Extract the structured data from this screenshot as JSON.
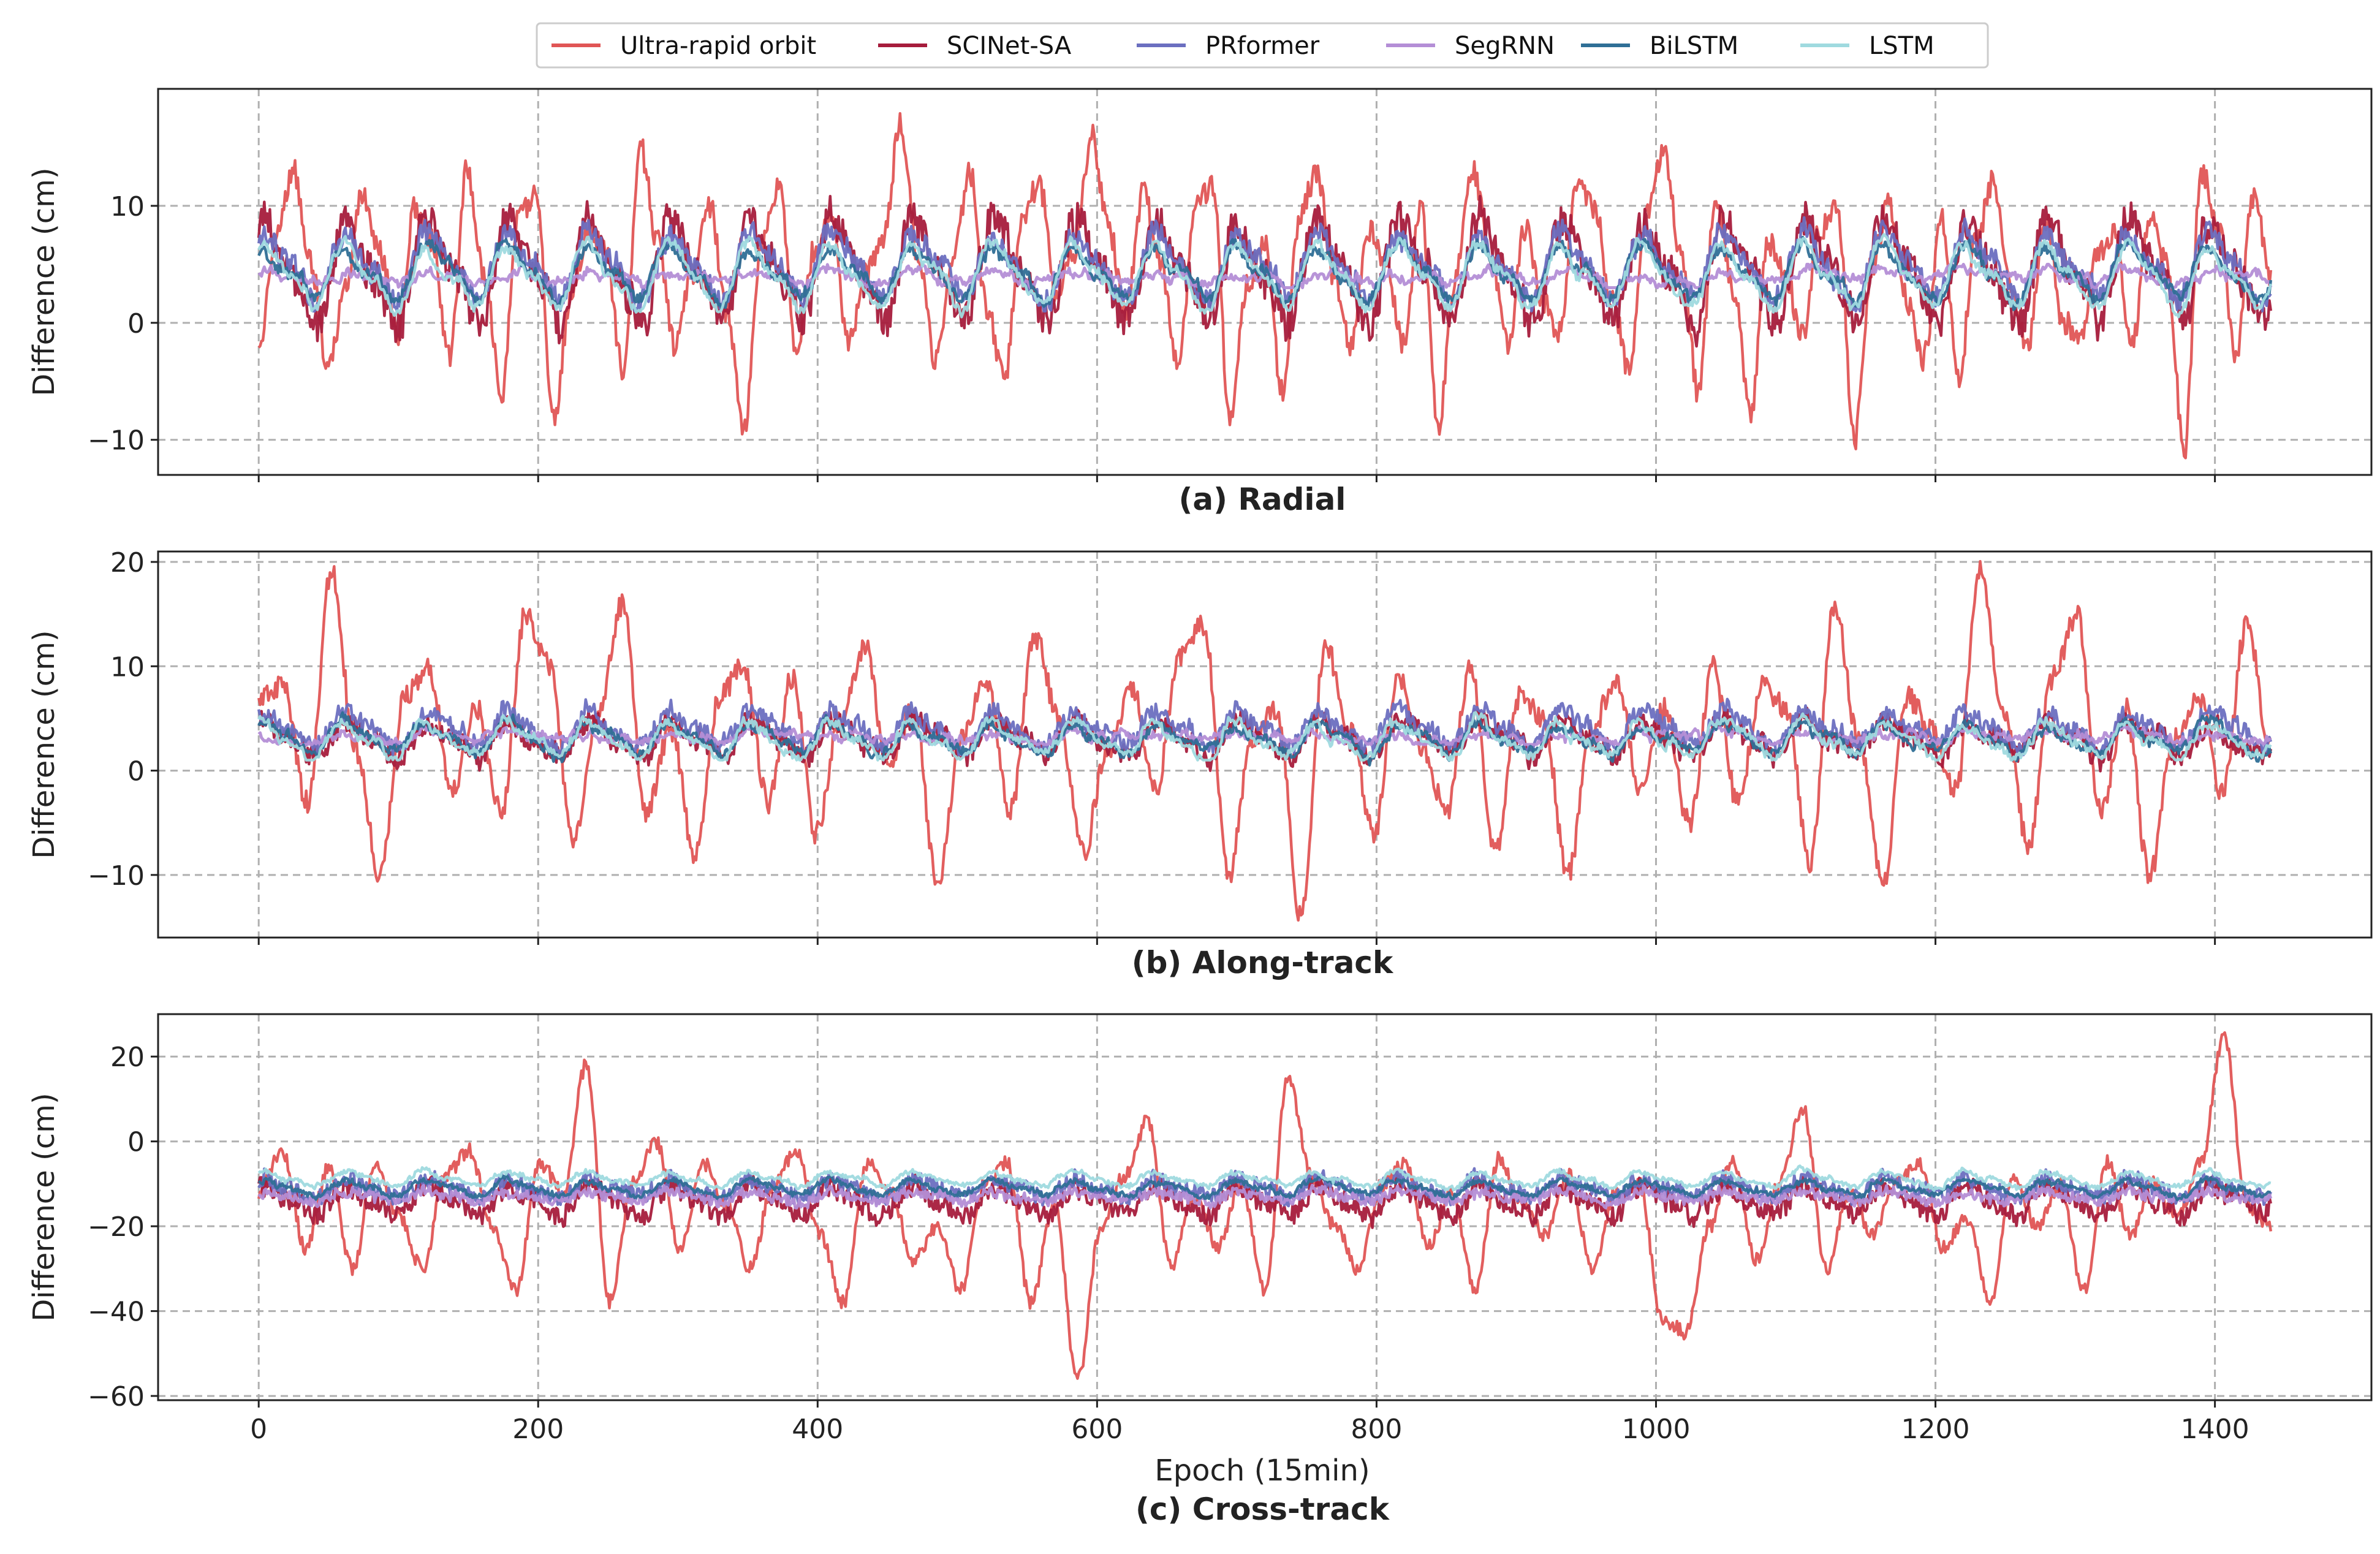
{
  "legend": [
    {
      "name": "Ultra-rapid orbit",
      "color": "#e05555"
    },
    {
      "name": "SCINet-SA",
      "color": "#a61c3c"
    },
    {
      "name": "PRformer",
      "color": "#6b6fc0"
    },
    {
      "name": "SegRNN",
      "color": "#b48ed6"
    },
    {
      "name": "BiLSTM",
      "color": "#2f6f96"
    },
    {
      "name": "LSTM",
      "color": "#9fdadf"
    }
  ],
  "chart_data": [
    {
      "type": "line",
      "panel": "a",
      "caption": "(a) Radial",
      "ylabel": "Difference (cm)",
      "xlabel": "",
      "xlim": [
        -72,
        1512
      ],
      "ylim": [
        -13,
        20
      ],
      "xticks": [
        0,
        200,
        400,
        600,
        800,
        1000,
        1200,
        1400
      ],
      "xtick_labels": [],
      "yticks": [
        -10,
        0,
        10
      ],
      "ytick_labels": [
        "−10",
        "0",
        "10"
      ],
      "grid": true,
      "series": [
        {
          "name": "Ultra-rapid orbit",
          "x_start": 0,
          "x_end": 1440,
          "y": [
            -3,
            8,
            13,
            5,
            -4,
            3,
            11,
            6,
            -1,
            10,
            7,
            -3,
            13,
            4,
            -6,
            9,
            11,
            -8,
            2,
            8,
            6,
            -4,
            15,
            7,
            -2,
            4,
            10,
            1,
            -9,
            7,
            12,
            -3,
            6,
            9,
            -2,
            4,
            7,
            17,
            6,
            -3,
            5,
            13,
            1,
            -5,
            9,
            12,
            2,
            6,
            16,
            8,
            1,
            11,
            5,
            -4,
            10,
            12,
            -8,
            3,
            7,
            -6,
            9,
            13,
            4,
            -2,
            8,
            5,
            -2,
            10,
            -9,
            4,
            13,
            6,
            -2,
            8,
            2,
            -1,
            12,
            10,
            2,
            -4,
            9,
            15,
            6,
            -6,
            11,
            3,
            -8,
            7,
            4,
            -1,
            8,
            10,
            -10,
            5,
            10,
            2,
            -3,
            9,
            -5,
            7,
            12,
            3,
            -2,
            9,
            0,
            -1,
            6,
            8,
            -2,
            9,
            5,
            -11,
            13,
            8,
            -3,
            11,
            4
          ],
          "stats": {
            "mean": 3,
            "amp": 8,
            "period": 58,
            "noise": 4.5
          }
        },
        {
          "name": "SCINet-SA",
          "x_start": 0,
          "x_end": 1440,
          "stats": {
            "mean": 4.5,
            "amp": 3.8,
            "period": 58,
            "noise": 1.6,
            "lo": -2,
            "hi": 11
          }
        },
        {
          "name": "PRformer",
          "x_start": 0,
          "x_end": 1440,
          "stats": {
            "mean": 4.8,
            "amp": 2.4,
            "period": 58,
            "noise": 0.9,
            "lo": 1,
            "hi": 9
          }
        },
        {
          "name": "SegRNN",
          "x_start": 0,
          "x_end": 1440,
          "stats": {
            "mean": 3.9,
            "amp": 0.3,
            "period": 58,
            "noise": 0.25,
            "lo": 3,
            "hi": 5
          }
        },
        {
          "name": "BiLSTM",
          "x_start": 0,
          "x_end": 1440,
          "stats": {
            "mean": 4.2,
            "amp": 2.0,
            "period": 58,
            "noise": 0.4,
            "lo": 1,
            "hi": 8
          }
        },
        {
          "name": "LSTM",
          "x_start": 0,
          "x_end": 1440,
          "stats": {
            "mean": 4.0,
            "amp": 2.3,
            "period": 58,
            "noise": 0.3,
            "lo": 0.5,
            "hi": 8
          }
        }
      ]
    },
    {
      "type": "line",
      "panel": "b",
      "caption": "(b) Along-track",
      "ylabel": "Difference (cm)",
      "xlabel": "",
      "xlim": [
        -72,
        1512
      ],
      "ylim": [
        -16,
        21
      ],
      "xticks": [
        0,
        200,
        400,
        600,
        800,
        1000,
        1200,
        1400
      ],
      "xtick_labels": [],
      "yticks": [
        -10,
        0,
        10,
        20
      ],
      "ytick_labels": [
        "−10",
        "0",
        "10",
        "20"
      ],
      "grid": true,
      "series": [
        {
          "name": "Ultra-rapid orbit",
          "x_start": 0,
          "x_end": 1440,
          "y": [
            7,
            8,
            -3,
            19,
            2,
            -10,
            7,
            10,
            -2,
            6,
            -4,
            15,
            10,
            -7,
            5,
            16,
            -4,
            4,
            -8,
            7,
            10,
            -3,
            9,
            -6,
            5,
            12,
            0,
            6,
            -11,
            3,
            9,
            -4,
            13,
            5,
            -8,
            2,
            8,
            -2,
            11,
            14,
            -10,
            3,
            6,
            -14,
            12,
            4,
            -6,
            9,
            2,
            -4,
            10,
            -8,
            7,
            5,
            -10,
            4,
            9,
            -2,
            6,
            -5,
            10,
            -3,
            8,
            6,
            -9,
            16,
            3,
            -11,
            7,
            4,
            -2,
            19,
            5,
            -7,
            9,
            15,
            -4,
            6,
            -10,
            3,
            7,
            -2,
            14,
            2
          ],
          "stats": {
            "mean": 2.5,
            "amp": 6,
            "period": 58,
            "noise": 4.5
          }
        },
        {
          "name": "SCINet-SA",
          "x_start": 0,
          "x_end": 1440,
          "stats": {
            "mean": 3.0,
            "amp": 1.5,
            "period": 58,
            "noise": 1.0,
            "lo": -1,
            "hi": 6
          }
        },
        {
          "name": "PRformer",
          "x_start": 0,
          "x_end": 1440,
          "stats": {
            "mean": 4.0,
            "amp": 1.4,
            "period": 58,
            "noise": 0.8,
            "lo": 1.5,
            "hi": 7
          }
        },
        {
          "name": "SegRNN",
          "x_start": 0,
          "x_end": 1440,
          "stats": {
            "mean": 3.3,
            "amp": 0.3,
            "period": 58,
            "noise": 0.25,
            "lo": 2.5,
            "hi": 4.2
          }
        },
        {
          "name": "BiLSTM",
          "x_start": 0,
          "x_end": 1440,
          "stats": {
            "mean": 3.0,
            "amp": 1.2,
            "period": 58,
            "noise": 0.35,
            "lo": 0.5,
            "hi": 6
          }
        },
        {
          "name": "LSTM",
          "x_start": 0,
          "x_end": 1440,
          "stats": {
            "mean": 3.0,
            "amp": 1.5,
            "period": 58,
            "noise": 0.3,
            "lo": 1,
            "hi": 6
          }
        }
      ]
    },
    {
      "type": "line",
      "panel": "c",
      "caption": "(c) Cross-track",
      "ylabel": "Difference (cm)",
      "xlabel": "Epoch (15min)",
      "xlim": [
        -72,
        1512
      ],
      "ylim": [
        -61,
        30
      ],
      "xticks": [
        0,
        200,
        400,
        600,
        800,
        1000,
        1200,
        1400
      ],
      "xtick_labels": [
        "0",
        "200",
        "400",
        "600",
        "800",
        "1000",
        "1200",
        "1400"
      ],
      "yticks": [
        -60,
        -40,
        -20,
        0,
        20
      ],
      "ytick_labels": [
        "−60",
        "−40",
        "−20",
        "0",
        "20"
      ],
      "grid": true,
      "series": [
        {
          "name": "Ultra-rapid orbit",
          "x_start": 0,
          "x_end": 1440,
          "y": [
            -12,
            -2,
            -25,
            -6,
            -30,
            -5,
            -18,
            -30,
            -8,
            -2,
            -20,
            -35,
            -5,
            -12,
            18,
            -38,
            -10,
            0,
            -25,
            -5,
            -15,
            -30,
            -10,
            -2,
            -22,
            -38,
            -5,
            -12,
            -28,
            -20,
            -35,
            -10,
            -5,
            -38,
            -15,
            -56,
            -20,
            -8,
            5,
            -30,
            -12,
            -25,
            -10,
            -35,
            15,
            -8,
            -20,
            -30,
            -10,
            -5,
            -25,
            -12,
            -35,
            -4,
            -15,
            -22,
            -8,
            -30,
            -12,
            -10,
            -42,
            -45,
            -20,
            -5,
            -28,
            -10,
            8,
            -30,
            -12,
            -22,
            -10,
            -5,
            -25,
            -18,
            -38,
            -8,
            -20,
            -10,
            -35,
            -5,
            -22,
            -10,
            -18,
            -5,
            25,
            -15,
            -20
          ],
          "stats": {
            "mean": -14,
            "amp": 8,
            "period": 58,
            "noise": 7
          }
        },
        {
          "name": "SCINet-SA",
          "x_start": 0,
          "x_end": 1440,
          "stats": {
            "mean": -14,
            "amp": 3,
            "period": 58,
            "noise": 2.5,
            "lo": -25,
            "hi": -6
          }
        },
        {
          "name": "PRformer",
          "x_start": 0,
          "x_end": 1440,
          "stats": {
            "mean": -11,
            "amp": 2,
            "period": 58,
            "noise": 2.0,
            "lo": -18,
            "hi": -5
          }
        },
        {
          "name": "SegRNN",
          "x_start": 0,
          "x_end": 1440,
          "stats": {
            "mean": -13,
            "amp": 1,
            "period": 58,
            "noise": 1.2,
            "lo": -17,
            "hi": -9
          }
        },
        {
          "name": "BiLSTM",
          "x_start": 0,
          "x_end": 1440,
          "stats": {
            "mean": -11,
            "amp": 1.5,
            "period": 58,
            "noise": 0.6,
            "lo": -16,
            "hi": -7
          }
        },
        {
          "name": "LSTM",
          "x_start": 0,
          "x_end": 1440,
          "stats": {
            "mean": -9,
            "amp": 1.5,
            "period": 58,
            "noise": 0.5,
            "lo": -14,
            "hi": -5
          }
        }
      ]
    }
  ]
}
